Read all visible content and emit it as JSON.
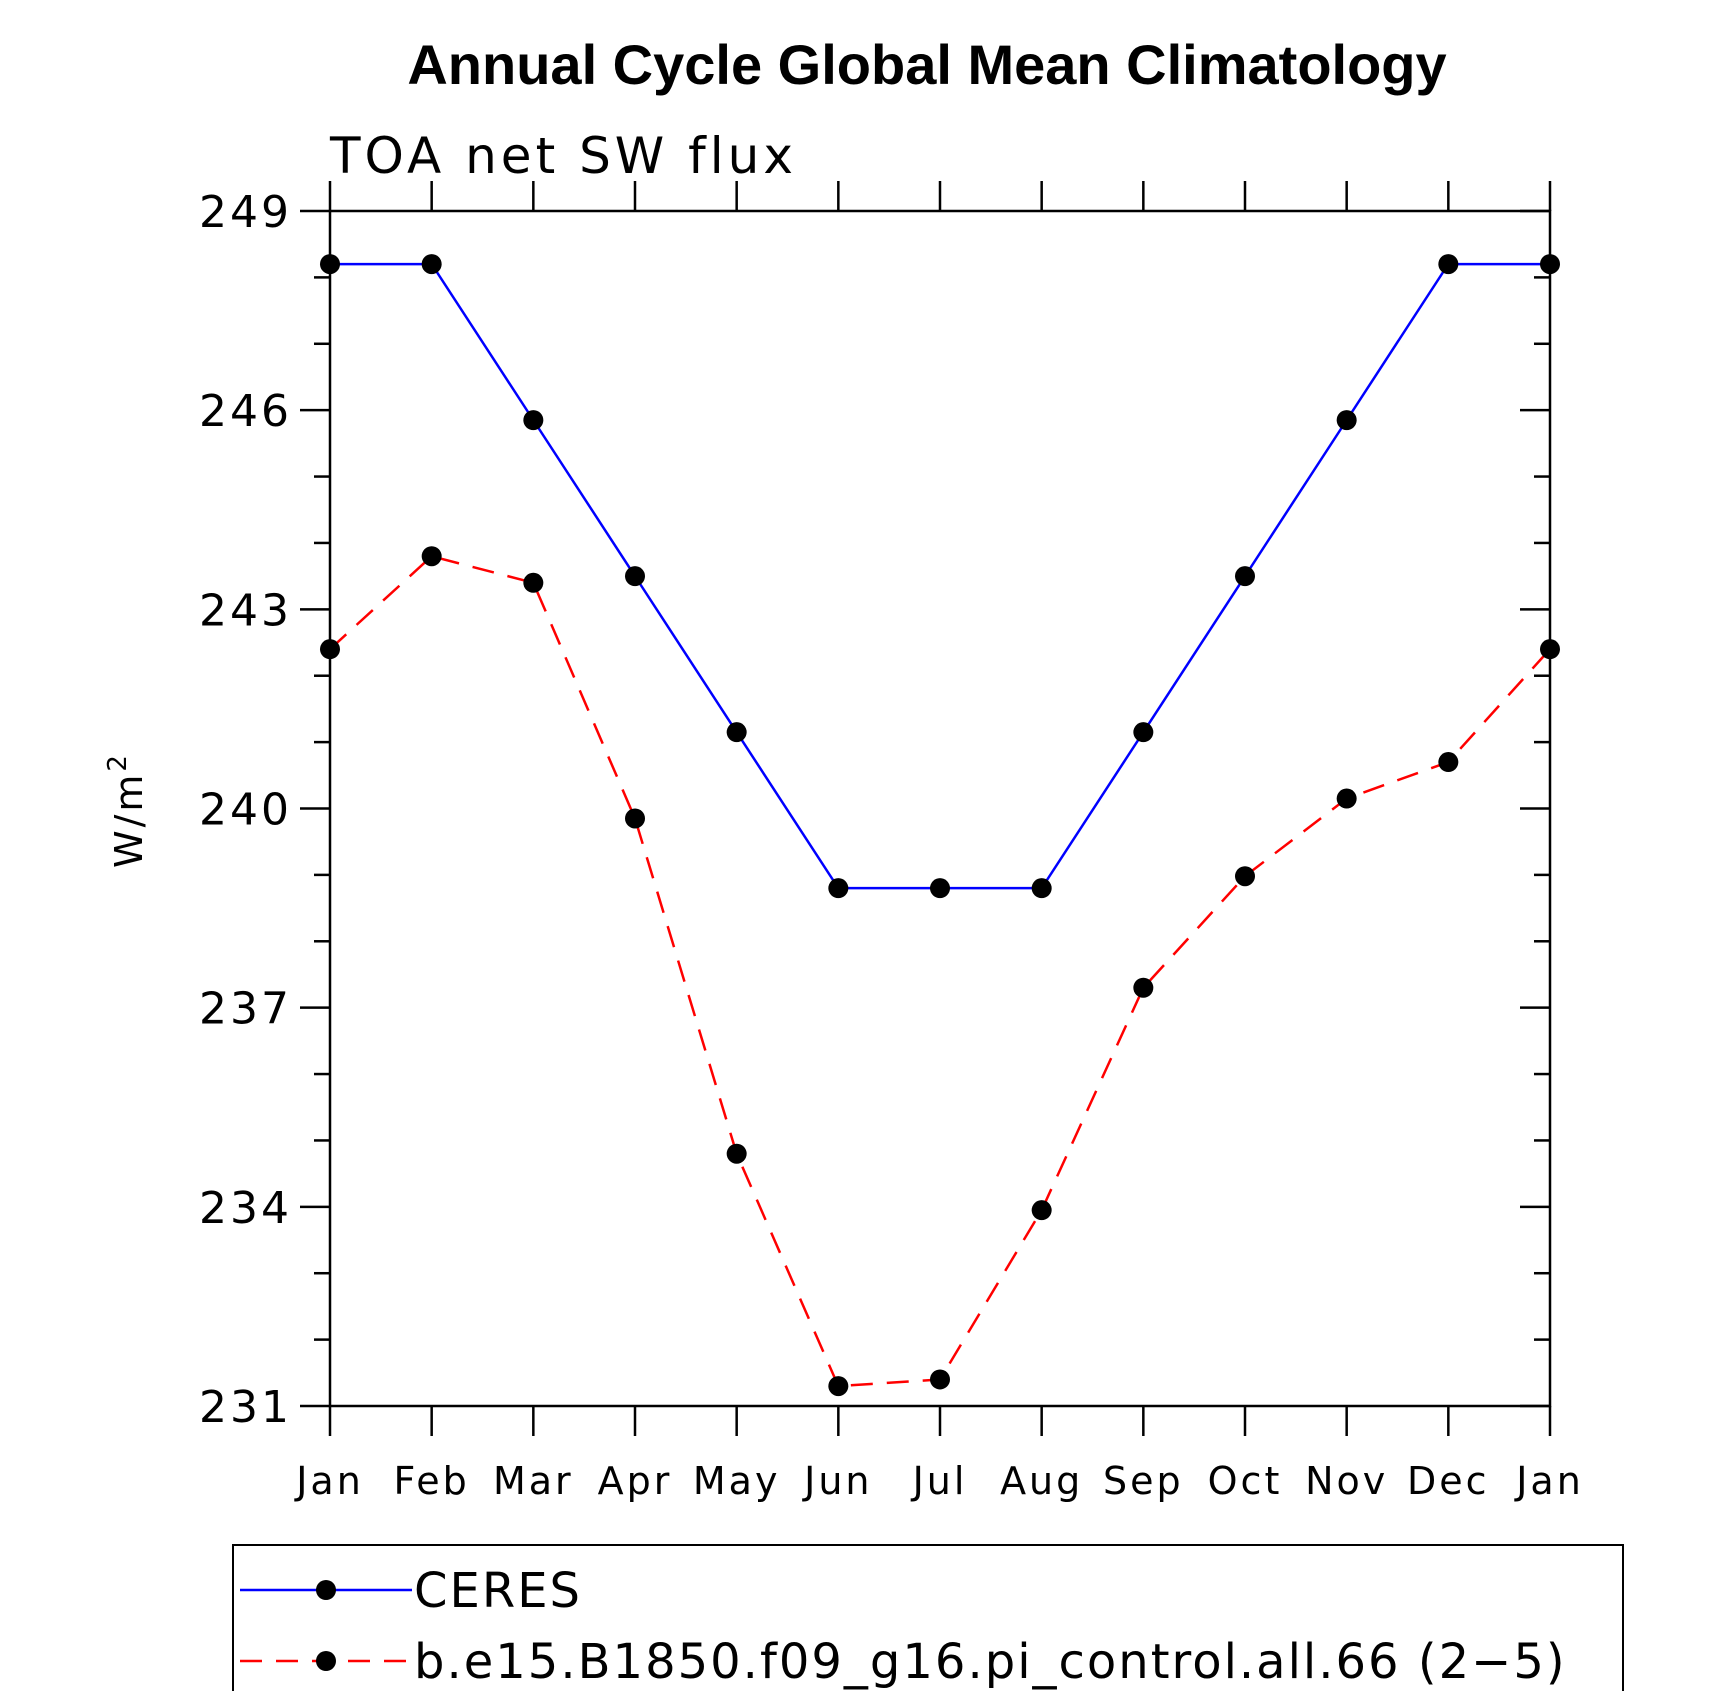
{
  "chart_data": {
    "type": "line",
    "title": "Annual Cycle Global Mean Climatology",
    "subtitle": "TOA net SW flux",
    "ylabel": "W/m",
    "ylabel_superscript": "2",
    "ylim": [
      231,
      249
    ],
    "yticks": [
      249,
      246,
      243,
      240,
      237,
      234,
      231
    ],
    "categories": [
      "Jan",
      "Feb",
      "Mar",
      "Apr",
      "May",
      "Jun",
      "Jul",
      "Aug",
      "Sep",
      "Oct",
      "Nov",
      "Dec",
      "Jan"
    ],
    "legend_position": "bottom",
    "series": [
      {
        "name": "CERES",
        "color": "#0000ff",
        "dash": "solid",
        "values": [
          248.2,
          248.2,
          245.85,
          243.5,
          241.15,
          238.8,
          238.8,
          238.8,
          241.15,
          243.5,
          245.85,
          248.2,
          248.2
        ]
      },
      {
        "name": "b.e15.B1850.f09_g16.pi_control.all.66 (2−5)",
        "color": "#ff0000",
        "dash": "dashed",
        "values": [
          242.4,
          243.8,
          243.4,
          239.85,
          234.8,
          231.3,
          231.4,
          233.95,
          237.3,
          238.98,
          240.15,
          240.7,
          242.4
        ]
      }
    ]
  }
}
